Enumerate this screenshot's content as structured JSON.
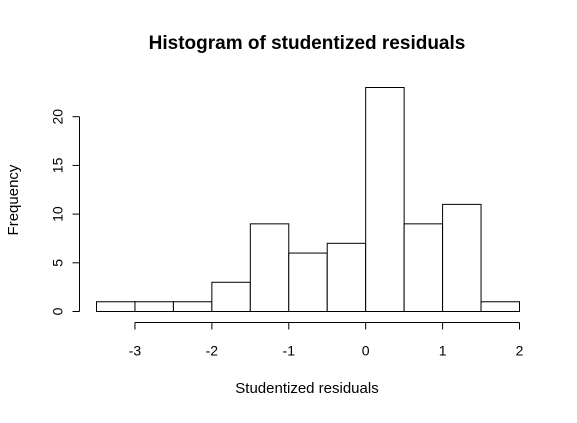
{
  "chart_data": {
    "type": "bar",
    "title": "Histogram of studentized residuals",
    "xlabel": "Studentized residuals",
    "ylabel": "Frequency",
    "bin_edges": [
      -3.5,
      -3.0,
      -2.5,
      -2.0,
      -1.5,
      -1.0,
      -0.5,
      0.0,
      0.5,
      1.0,
      1.5,
      2.0
    ],
    "values": [
      1,
      1,
      1,
      3,
      9,
      6,
      7,
      23,
      9,
      11,
      1
    ],
    "x_ticks": [
      -3,
      -2,
      -1,
      0,
      1,
      2
    ],
    "x_tick_labels": [
      "-3",
      "-2",
      "-1",
      "0",
      "1",
      "2"
    ],
    "y_ticks": [
      0,
      5,
      10,
      15,
      20
    ],
    "y_tick_labels": [
      "0",
      "5",
      "10",
      "15",
      "20"
    ],
    "xlim": [
      -3.5,
      2.0
    ],
    "ylim": [
      0,
      23
    ],
    "grid": false,
    "legend": "none",
    "bar_fill": "#ffffff",
    "bar_stroke": "#000000"
  }
}
